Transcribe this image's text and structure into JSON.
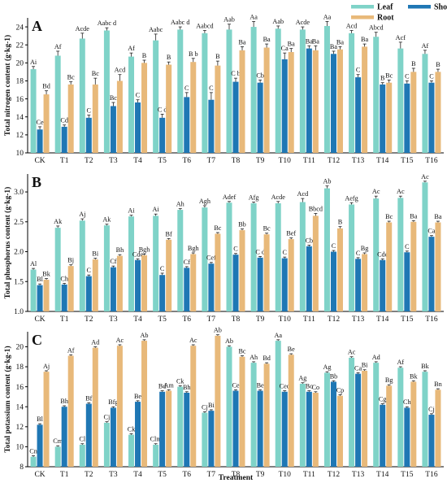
{
  "chart_data": {
    "type": "bar",
    "xlabel": "Treatment",
    "legend": {
      "placement": "top-right",
      "items": [
        {
          "name": "Leaf",
          "color": "#7fd3c8"
        },
        {
          "name": "Shoot",
          "color": "#1f77b4"
        },
        {
          "name": "Root",
          "color": "#e8b97a"
        }
      ]
    },
    "categories": [
      "CK",
      "T1",
      "T2",
      "T3",
      "T4",
      "T5",
      "T6",
      "T7",
      "T8",
      "T9",
      "T10",
      "T11",
      "T12",
      "T13",
      "T14",
      "T15",
      "T16"
    ],
    "panels": [
      {
        "letter": "A",
        "ylabel": "Total nitrogen content (g·kg-1)",
        "ylim": [
          10,
          25
        ],
        "yticks": [
          10,
          12,
          14,
          16,
          18,
          20,
          22,
          24
        ],
        "series": [
          {
            "name": "Leaf",
            "color": "#7fd3c8",
            "values": [
              19.3,
              20.8,
              22.7,
              23.6,
              20.7,
              22.5,
              23.7,
              23.3,
              23.7,
              24.0,
              23.8,
              23.7,
              24.1,
              23.3,
              22.9,
              21.6,
              21.0
            ],
            "err": [
              0.3,
              0.5,
              0.6,
              0.3,
              0.4,
              0.7,
              0.3,
              0.3,
              0.6,
              0.6,
              0.3,
              0.3,
              0.5,
              0.3,
              0.5,
              0.7,
              0.4
            ],
            "labels": [
              "Ai",
              "Af",
              "Acde",
              "Aabc d",
              "Af",
              "Aabc",
              "Aabc d",
              "Aabcd",
              "Aab",
              "Aa",
              "Aab",
              "Acde",
              "Aa",
              "Acd",
              "Abcd",
              "Acf",
              "Af"
            ]
          },
          {
            "name": "Shoot",
            "color": "#1f77b4",
            "values": [
              12.6,
              12.9,
              13.9,
              15.2,
              15.6,
              13.9,
              16.2,
              15.9,
              17.9,
              17.8,
              20.4,
              21.6,
              21.0,
              18.4,
              17.6,
              17.7,
              17.8
            ],
            "err": [
              0.3,
              0.2,
              0.3,
              0.4,
              0.3,
              0.4,
              0.5,
              0.8,
              0.4,
              0.3,
              0.7,
              0.3,
              0.3,
              0.3,
              0.2,
              0.3,
              0.2
            ],
            "labels": [
              "Ce",
              "Cd",
              "C",
              "Bc",
              "C",
              "C d",
              "C",
              "C",
              "C b",
              "Cb",
              "Ca",
              "Ba",
              "Ba",
              "C",
              "B",
              "C",
              "C"
            ]
          },
          {
            "name": "Root",
            "color": "#e8b97a",
            "values": [
              16.5,
              17.6,
              17.6,
              18.0,
              20.0,
              19.8,
              20.1,
              19.7,
              21.4,
              21.7,
              21.2,
              21.4,
              21.5,
              21.8,
              17.8,
              19.0,
              19.0
            ],
            "err": [
              0.4,
              0.3,
              0.7,
              0.7,
              0.3,
              0.3,
              0.4,
              0.5,
              0.4,
              0.4,
              0.4,
              0.5,
              0.3,
              0.3,
              0.3,
              0.4,
              0.3
            ],
            "labels": [
              "Bd",
              "Bc",
              "Bc",
              "Acd",
              "B",
              "B",
              "B b",
              "B",
              "Ba",
              "Ba",
              "Ba",
              "Ba",
              "Ba",
              "Ba",
              "Bc",
              "B",
              "B"
            ]
          }
        ]
      },
      {
        "letter": "B",
        "ylabel": "Total phosphorus content (g·kg-1)",
        "ylim": [
          1.0,
          3.3
        ],
        "yticks": [
          1.0,
          1.5,
          2.0,
          2.5,
          3.0
        ],
        "series": [
          {
            "name": "Leaf",
            "color": "#7fd3c8",
            "values": [
              1.7,
              2.4,
              2.52,
              2.44,
              2.59,
              2.6,
              2.7,
              2.74,
              2.82,
              2.81,
              2.81,
              2.83,
              3.06,
              2.79,
              2.89,
              2.9,
              3.16
            ],
            "err": [
              0.02,
              0.03,
              0.03,
              0.02,
              0.02,
              0.03,
              0.02,
              0.03,
              0.02,
              0.02,
              0.03,
              0.06,
              0.04,
              0.03,
              0.04,
              0.03,
              0.02
            ],
            "labels": [
              "Al",
              "Ak",
              "Aj",
              "Ak",
              "Ai",
              "Ai",
              "Ah",
              "Agh",
              "Adef",
              "Afg",
              "Acde",
              "Acd",
              "Ab",
              "Aefg",
              "Ac",
              "Ac",
              "Ac"
            ]
          },
          {
            "name": "Shoot",
            "color": "#1f77b4",
            "values": [
              1.44,
              1.45,
              1.59,
              1.74,
              1.86,
              1.61,
              1.73,
              1.8,
              1.95,
              1.9,
              1.89,
              2.09,
              2.0,
              1.88,
              1.86,
              1.99,
              2.25
            ],
            "err": [
              0.02,
              0.02,
              0.02,
              0.02,
              0.02,
              0.03,
              0.02,
              0.02,
              0.02,
              0.02,
              0.02,
              0.02,
              0.02,
              0.02,
              0.02,
              0.02,
              0.02
            ],
            "labels": [
              "Bl",
              "Ch",
              "C",
              "Cf",
              "Cde",
              "C",
              "Cf",
              "Cef",
              "C",
              "C d",
              "C",
              "Cb",
              "C",
              "C",
              "Cde",
              "C",
              "Ca"
            ]
          },
          {
            "name": "Root",
            "color": "#e8b97a",
            "values": [
              1.53,
              1.76,
              1.87,
              1.93,
              1.94,
              2.2,
              1.96,
              2.3,
              2.36,
              2.29,
              2.21,
              2.6,
              2.39,
              1.96,
              2.49,
              2.5,
              2.49
            ],
            "err": [
              0.02,
              0.02,
              0.02,
              0.02,
              0.02,
              0.02,
              0.02,
              0.02,
              0.02,
              0.02,
              0.02,
              0.04,
              0.03,
              0.02,
              0.02,
              0.02,
              0.02
            ],
            "labels": [
              "Bk",
              "Bj",
              "Bi",
              "Bh",
              "Bgh",
              "Bf",
              "Bgh",
              "Bc",
              "Bb",
              "Bc",
              "Bef",
              "Bbcd",
              "B",
              "Bg",
              "Bc",
              "Ba",
              "Ba"
            ]
          }
        ]
      },
      {
        "letter": "C",
        "ylabel": "Total potassium content (g·kg-1)",
        "ylim": [
          8,
          21.5
        ],
        "yticks": [
          8,
          10,
          12,
          14,
          16,
          18,
          20
        ],
        "series": [
          {
            "name": "Leaf",
            "color": "#7fd3c8",
            "values": [
              9.0,
              10.0,
              10.2,
              12.4,
              11.2,
              10.2,
              16.0,
              13.4,
              20.0,
              18.4,
              20.6,
              16.3,
              17.4,
              18.9,
              18.4,
              17.9,
              17.5
            ],
            "err": [
              0.1,
              0.1,
              0.1,
              0.1,
              0.1,
              0.1,
              0.1,
              0.1,
              0.1,
              0.1,
              0.1,
              0.1,
              0.1,
              0.1,
              0.1,
              0.1,
              0.1
            ],
            "labels": [
              "Cn",
              "Cm",
              "Cl",
              "Cj",
              "Ck",
              "Clm",
              "Ck",
              "Cj",
              "Ab",
              "Ah",
              "Aa",
              "Ag",
              "Ag",
              "Ac",
              "Ad",
              "Af",
              "Bk"
            ]
          },
          {
            "name": "Shoot",
            "color": "#1f77b4",
            "values": [
              12.2,
              14.0,
              14.3,
              13.9,
              14.5,
              15.5,
              15.4,
              13.6,
              15.6,
              15.6,
              15.5,
              15.5,
              16.5,
              17.3,
              14.2,
              13.9,
              13.2
            ],
            "err": [
              0.1,
              0.1,
              0.1,
              0.1,
              0.1,
              0.1,
              0.1,
              0.1,
              0.1,
              0.1,
              0.1,
              0.1,
              0.1,
              0.1,
              0.1,
              0.1,
              0.1
            ],
            "labels": [
              "Bl",
              "Bh",
              "Bf",
              "Bfg",
              "Be",
              "Bd",
              "Bh",
              "Bi",
              "Ce",
              "Be",
              "Ced",
              "Bc",
              "Bb",
              "Ca",
              "Cg",
              "Ch",
              "Cj"
            ]
          },
          {
            "name": "Root",
            "color": "#e8b97a",
            "values": [
              17.5,
              19.1,
              19.9,
              20.1,
              20.6,
              15.6,
              20.1,
              21.1,
              19.0,
              18.3,
              19.2,
              15.4,
              15.1,
              17.6,
              16.1,
              16.5,
              15.7
            ],
            "err": [
              0.1,
              0.1,
              0.1,
              0.1,
              0.1,
              0.1,
              0.1,
              0.1,
              0.1,
              0.1,
              0.1,
              0.1,
              0.1,
              0.1,
              0.1,
              0.1,
              0.1
            ],
            "labels": [
              "Aj",
              "Af",
              "Ad",
              "Ac",
              "Ab",
              "Am",
              "Ac",
              "Ab",
              "Bc",
              "Bd",
              "Be",
              "Co",
              "Cp",
              "Bi",
              "Bg",
              "Bk",
              "Bn"
            ]
          }
        ]
      }
    ]
  }
}
